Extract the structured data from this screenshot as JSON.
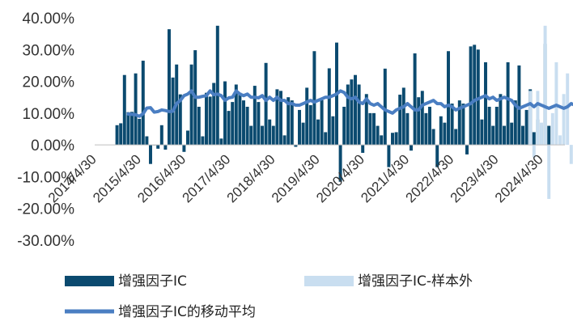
{
  "chart_data": {
    "type": "bar",
    "title": "",
    "xlabel": "",
    "ylabel": "",
    "ylim": [
      -0.3,
      0.4
    ],
    "y_ticks": [
      "40.00%",
      "30.00%",
      "20.00%",
      "10.00%",
      "0.00%",
      "-10.00%",
      "-20.00%",
      "-30.00%"
    ],
    "y_tick_values": [
      0.4,
      0.3,
      0.2,
      0.1,
      0.0,
      -0.1,
      -0.2,
      -0.3
    ],
    "x_ticks": [
      "2014/4/30",
      "2015/4/30",
      "2016/4/30",
      "2017/4/30",
      "2018/4/30",
      "2019/4/30",
      "2020/4/30",
      "2021/4/30",
      "2022/4/30",
      "2023/4/30",
      "2024/4/30"
    ],
    "grid": false,
    "legend_position": "bottom",
    "colors": {
      "in_sample": "#0b4a6f",
      "out_sample": "#c9def0",
      "moving_avg": "#4a7ec2"
    },
    "series": [
      {
        "name": "增强因子IC",
        "type": "bar",
        "values": [
          0.062,
          0.068,
          0.22,
          0.103,
          0.104,
          0.225,
          0.082,
          0.265,
          0.027,
          -0.06,
          0.0,
          -0.012,
          0.062,
          -0.015,
          0.364,
          0.212,
          0.253,
          0.159,
          -0.022,
          0.045,
          0.253,
          0.298,
          0.12,
          0.027,
          0.164,
          0.152,
          0.195,
          0.375,
          0.02,
          0.2,
          0.107,
          0.135,
          0.19,
          0.164,
          0.14,
          0.12,
          0.06,
          0.186,
          0.135,
          0.06,
          0.258,
          0.08,
          0.06,
          0.175,
          0.17,
          0.03,
          0.15,
          0.14,
          -0.006,
          0.11,
          0.07,
          0.18,
          0.125,
          0.295,
          0.08,
          0.141,
          0.04,
          0.241,
          0.09,
          0.322,
          -0.116,
          0.12,
          0.19,
          0.206,
          0.22,
          0.19,
          -0.025,
          0.16,
          0.1,
          0.1,
          0.06,
          0.03,
          0.24,
          -0.07,
          0.038,
          0.04,
          0.158,
          0.18,
          0.1,
          -0.018,
          0.288,
          0.15,
          0.17,
          0.1,
          0.12,
          0.05,
          -0.07,
          0.09,
          0.07,
          0.295,
          0.13,
          0.05,
          0.14,
          0.13,
          -0.03,
          0.31,
          0.315,
          0.3,
          0.08,
          0.26,
          0.12,
          0.06,
          0.12,
          0.16,
          0.06,
          0.26,
          0.07,
          0.14,
          0.25,
          0.06,
          0.11,
          0.175,
          0.04,
          0.08,
          0.06,
          0.318,
          0.06
        ],
        "x_start": "2014/10/31",
        "x_step_months": 1
      },
      {
        "name": "增强因子IC-样本外",
        "type": "bar",
        "values": [
          0.17,
          -0.04,
          0.17,
          0.07,
          0.375,
          -0.17,
          0.1,
          0.26,
          0.03,
          0.16,
          0.225,
          -0.06
        ],
        "x_start": "2024/1/31",
        "x_step_months": 1
      },
      {
        "name": "增强因子IC的移动平均",
        "type": "line",
        "values": [
          0.097,
          0.096,
          0.095,
          0.09,
          0.098,
          0.116,
          0.117,
          0.103,
          0.105,
          0.11,
          0.108,
          0.105,
          0.106,
          0.13,
          0.14,
          0.155,
          0.16,
          0.17,
          0.15,
          0.15,
          0.153,
          0.155,
          0.17,
          0.158,
          0.16,
          0.155,
          0.14,
          0.148,
          0.15,
          0.17,
          0.16,
          0.155,
          0.16,
          0.15,
          0.15,
          0.148,
          0.155,
          0.14,
          0.15,
          0.14,
          0.15,
          0.14,
          0.14,
          0.13,
          0.13,
          0.125,
          0.125,
          0.13,
          0.135,
          0.14,
          0.135,
          0.14,
          0.145,
          0.15,
          0.15,
          0.155,
          0.16,
          0.17,
          0.165,
          0.15,
          0.145,
          0.15,
          0.135,
          0.13,
          0.145,
          0.13,
          0.125,
          0.13,
          0.12,
          0.11,
          0.105,
          0.1,
          0.11,
          0.115,
          0.12,
          0.13,
          0.12,
          0.11,
          0.11,
          0.125,
          0.13,
          0.135,
          0.14,
          0.13,
          0.13,
          0.12,
          0.125,
          0.12,
          0.11,
          0.115,
          0.12,
          0.125,
          0.13,
          0.14,
          0.145,
          0.15,
          0.155,
          0.145,
          0.15,
          0.14,
          0.145,
          0.15,
          0.145,
          0.14,
          0.125,
          0.115,
          0.12,
          0.125,
          0.13,
          0.12,
          0.13,
          0.125,
          0.12,
          0.115,
          0.12,
          0.125,
          0.12,
          0.115,
          0.12,
          0.13,
          0.125,
          0.12,
          0.135,
          0.155,
          0.115,
          0.12,
          0.125,
          0.13,
          0.128,
          0.125,
          0.13,
          0.12,
          0.11
        ],
        "x_start": "2015/1/31",
        "x_step_months": 1
      }
    ]
  }
}
